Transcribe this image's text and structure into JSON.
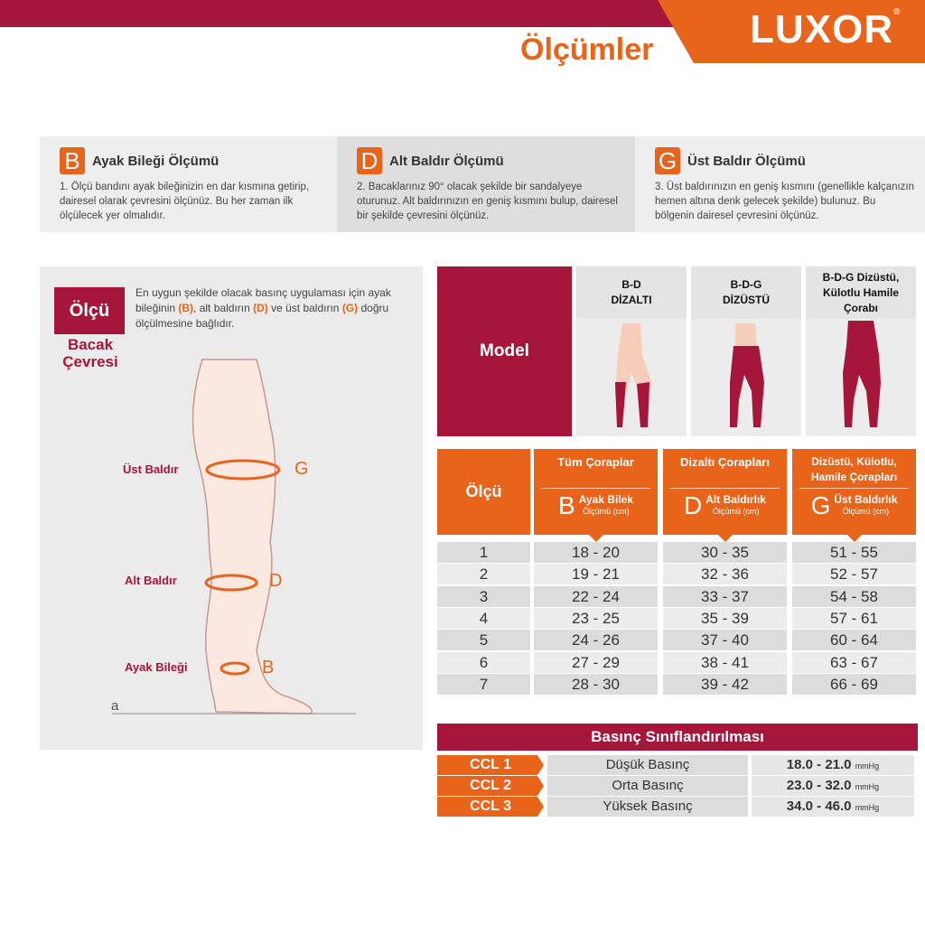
{
  "header": {
    "brand": "LUXOR",
    "title": "Ölçümler",
    "colors": {
      "red": "#a6153a",
      "orange": "#e8641b"
    }
  },
  "instructions": [
    {
      "letter": "B",
      "title": "Ayak Bileği Ölçümü",
      "text": "1. Ölçü bandını ayak bileğinizin en dar kısmına getirip, dairesel olarak çevresini ölçünüz. Bu her zaman ilk ölçülecek yer olmalıdır."
    },
    {
      "letter": "D",
      "title": "Alt Baldır Ölçümü",
      "text": "2. Bacaklarınız 90° olacak şekilde bir sandalyeye oturunuz. Alt baldırınızın en geniş kısmını bulup, dairesel bir şekilde çevresini ölçünüz."
    },
    {
      "letter": "G",
      "title": "Üst Baldır Ölçümü",
      "text": "3. Üst baldırınızın en geniş kısmını (genellikle kalçanızın hemen altına denk gelecek şekilde) bulunuz. Bu bölgenin dairesel çevresini ölçünüz."
    }
  ],
  "left": {
    "badge": "Ölçü",
    "subtitle": "Bacak Çevresi",
    "intro": {
      "p1": "En uygun şekilde olacak basınç uygulaması için ayak bileğinin ",
      "b": "(B)",
      "p2": ", alt baldırın ",
      "d": "(D)",
      "p3": " ve üst baldırın ",
      "g": "(G)",
      "p4": " doğru ölçülmesine bağlıdır."
    },
    "labels": [
      {
        "name": "Üst Baldır",
        "letter": "G"
      },
      {
        "name": "Alt Baldır",
        "letter": "D"
      },
      {
        "name": "Ayak Bileği",
        "letter": "B"
      }
    ],
    "axis_letter": "a"
  },
  "models": {
    "head": "Model",
    "items": [
      {
        "l1": "B-D",
        "l2": "DİZALTI",
        "l3": ""
      },
      {
        "l1": "B-D-G",
        "l2": "DİZÜSTÜ",
        "l3": ""
      },
      {
        "l1": "B-D-G Dizüstü,",
        "l2": "Külotlu Hamile",
        "l3": "Çorabı"
      }
    ]
  },
  "size_table": {
    "first_header": "Ölçü",
    "headers": [
      {
        "top": "Tüm Çoraplar",
        "letter": "B",
        "sub": "Ayak Bilek",
        "unit": "Ölçümü (cm)"
      },
      {
        "top": "Dizaltı Çorapları",
        "letter": "D",
        "sub": "Alt Baldırlık",
        "unit": "Ölçümü (cm)"
      },
      {
        "top": "Dizüstü, Külotlu, Hamile Çorapları",
        "letter": "G",
        "sub": "Üst Baldırlık",
        "unit": "Ölçümü (cm)"
      }
    ],
    "rows": [
      [
        "1",
        "18 - 20",
        "30 - 35",
        "51 - 55"
      ],
      [
        "2",
        "19 - 21",
        "32 - 36",
        "52 - 57"
      ],
      [
        "3",
        "22 - 24",
        "33 - 37",
        "54 - 58"
      ],
      [
        "4",
        "23 - 25",
        "35 - 39",
        "57 - 61"
      ],
      [
        "5",
        "24 - 26",
        "37 - 40",
        "60 - 64"
      ],
      [
        "6",
        "27 - 29",
        "38 - 41",
        "63 - 67"
      ],
      [
        "7",
        "28 - 30",
        "39 - 42",
        "66 - 69"
      ]
    ]
  },
  "pressure": {
    "title": "Basınç Sınıflandırılması",
    "unit": "mmHg",
    "rows": [
      {
        "ccl": "CCL 1",
        "name": "Düşük Basınç",
        "range": "18.0 - 21.0"
      },
      {
        "ccl": "CCL 2",
        "name": "Orta Basınç",
        "range": "23.0 - 32.0"
      },
      {
        "ccl": "CCL 3",
        "name": "Yüksek Basınç",
        "range": "34.0 - 46.0"
      }
    ]
  }
}
